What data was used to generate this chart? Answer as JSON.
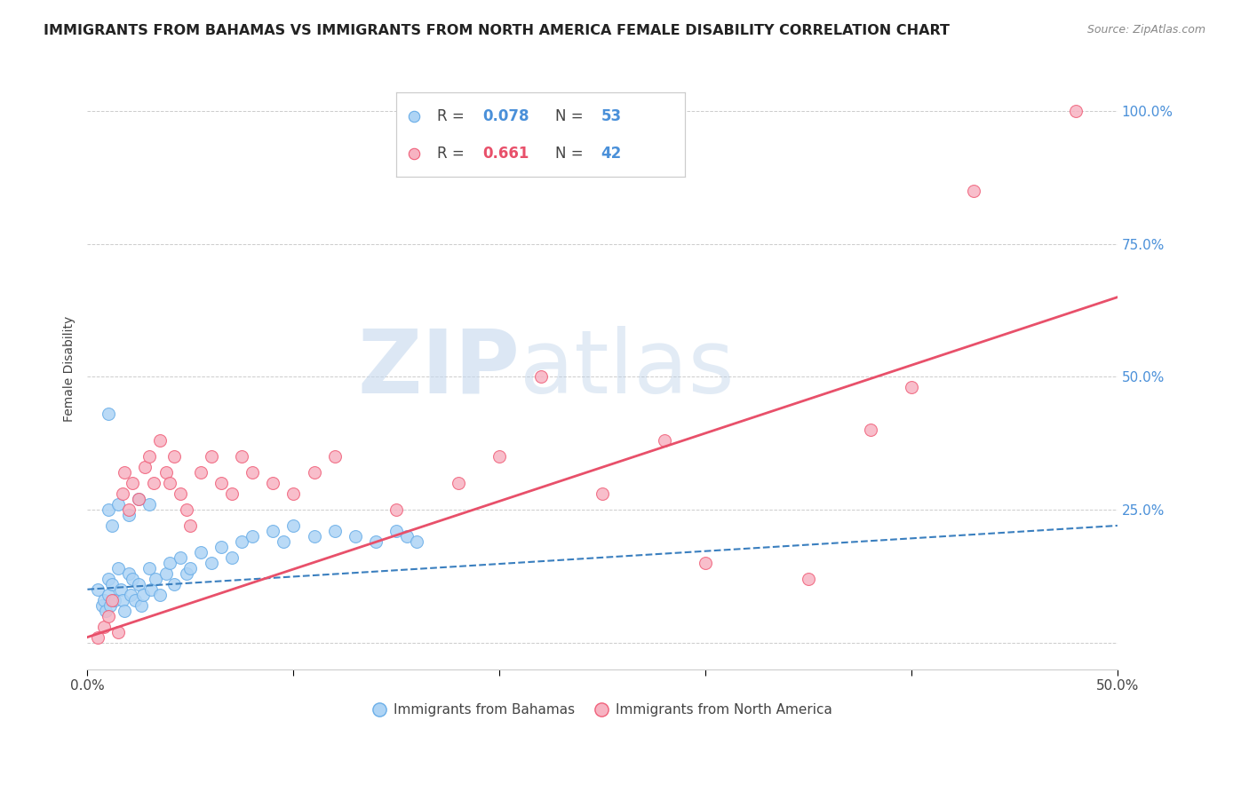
{
  "title": "IMMIGRANTS FROM BAHAMAS VS IMMIGRANTS FROM NORTH AMERICA FEMALE DISABILITY CORRELATION CHART",
  "source": "Source: ZipAtlas.com",
  "ylabel": "Female Disability",
  "y_ticks": [
    0.0,
    0.25,
    0.5,
    0.75,
    1.0
  ],
  "y_tick_labels": [
    "",
    "25.0%",
    "50.0%",
    "75.0%",
    "100.0%"
  ],
  "xlim": [
    0.0,
    0.5
  ],
  "ylim": [
    -0.05,
    1.08
  ],
  "watermark_zip": "ZIP",
  "watermark_atlas": "atlas",
  "blue_color": "#aed4f5",
  "pink_color": "#f7b3c2",
  "blue_edge_color": "#6aaee8",
  "pink_edge_color": "#f0607a",
  "blue_line_color": "#3a7fbf",
  "pink_line_color": "#e8506a",
  "blue_scatter_x": [
    0.005,
    0.007,
    0.008,
    0.009,
    0.01,
    0.01,
    0.011,
    0.012,
    0.013,
    0.015,
    0.016,
    0.017,
    0.018,
    0.02,
    0.021,
    0.022,
    0.023,
    0.025,
    0.026,
    0.027,
    0.03,
    0.031,
    0.033,
    0.035,
    0.038,
    0.04,
    0.042,
    0.045,
    0.048,
    0.05,
    0.055,
    0.06,
    0.065,
    0.07,
    0.075,
    0.08,
    0.09,
    0.095,
    0.1,
    0.11,
    0.12,
    0.13,
    0.14,
    0.15,
    0.155,
    0.16,
    0.01,
    0.012,
    0.015,
    0.02,
    0.025,
    0.03,
    0.01
  ],
  "blue_scatter_y": [
    0.1,
    0.07,
    0.08,
    0.06,
    0.12,
    0.09,
    0.07,
    0.11,
    0.08,
    0.14,
    0.1,
    0.08,
    0.06,
    0.13,
    0.09,
    0.12,
    0.08,
    0.11,
    0.07,
    0.09,
    0.14,
    0.1,
    0.12,
    0.09,
    0.13,
    0.15,
    0.11,
    0.16,
    0.13,
    0.14,
    0.17,
    0.15,
    0.18,
    0.16,
    0.19,
    0.2,
    0.21,
    0.19,
    0.22,
    0.2,
    0.21,
    0.2,
    0.19,
    0.21,
    0.2,
    0.19,
    0.25,
    0.22,
    0.26,
    0.24,
    0.27,
    0.26,
    0.43
  ],
  "pink_scatter_x": [
    0.005,
    0.008,
    0.01,
    0.012,
    0.015,
    0.017,
    0.018,
    0.02,
    0.022,
    0.025,
    0.028,
    0.03,
    0.032,
    0.035,
    0.038,
    0.04,
    0.042,
    0.045,
    0.048,
    0.05,
    0.055,
    0.06,
    0.065,
    0.07,
    0.075,
    0.08,
    0.09,
    0.1,
    0.11,
    0.12,
    0.15,
    0.18,
    0.2,
    0.22,
    0.25,
    0.28,
    0.3,
    0.35,
    0.38,
    0.4,
    0.43,
    0.48
  ],
  "pink_scatter_y": [
    0.01,
    0.03,
    0.05,
    0.08,
    0.02,
    0.28,
    0.32,
    0.25,
    0.3,
    0.27,
    0.33,
    0.35,
    0.3,
    0.38,
    0.32,
    0.3,
    0.35,
    0.28,
    0.25,
    0.22,
    0.32,
    0.35,
    0.3,
    0.28,
    0.35,
    0.32,
    0.3,
    0.28,
    0.32,
    0.35,
    0.25,
    0.3,
    0.35,
    0.5,
    0.28,
    0.38,
    0.15,
    0.12,
    0.4,
    0.48,
    0.85,
    1.0
  ],
  "blue_trend_x": [
    0.0,
    0.5
  ],
  "blue_trend_y": [
    0.1,
    0.22
  ],
  "pink_trend_x": [
    0.0,
    0.5
  ],
  "pink_trend_y": [
    0.01,
    0.65
  ],
  "background_color": "#ffffff",
  "grid_color": "#cccccc",
  "title_fontsize": 11.5,
  "source_fontsize": 9,
  "tick_fontsize": 11
}
